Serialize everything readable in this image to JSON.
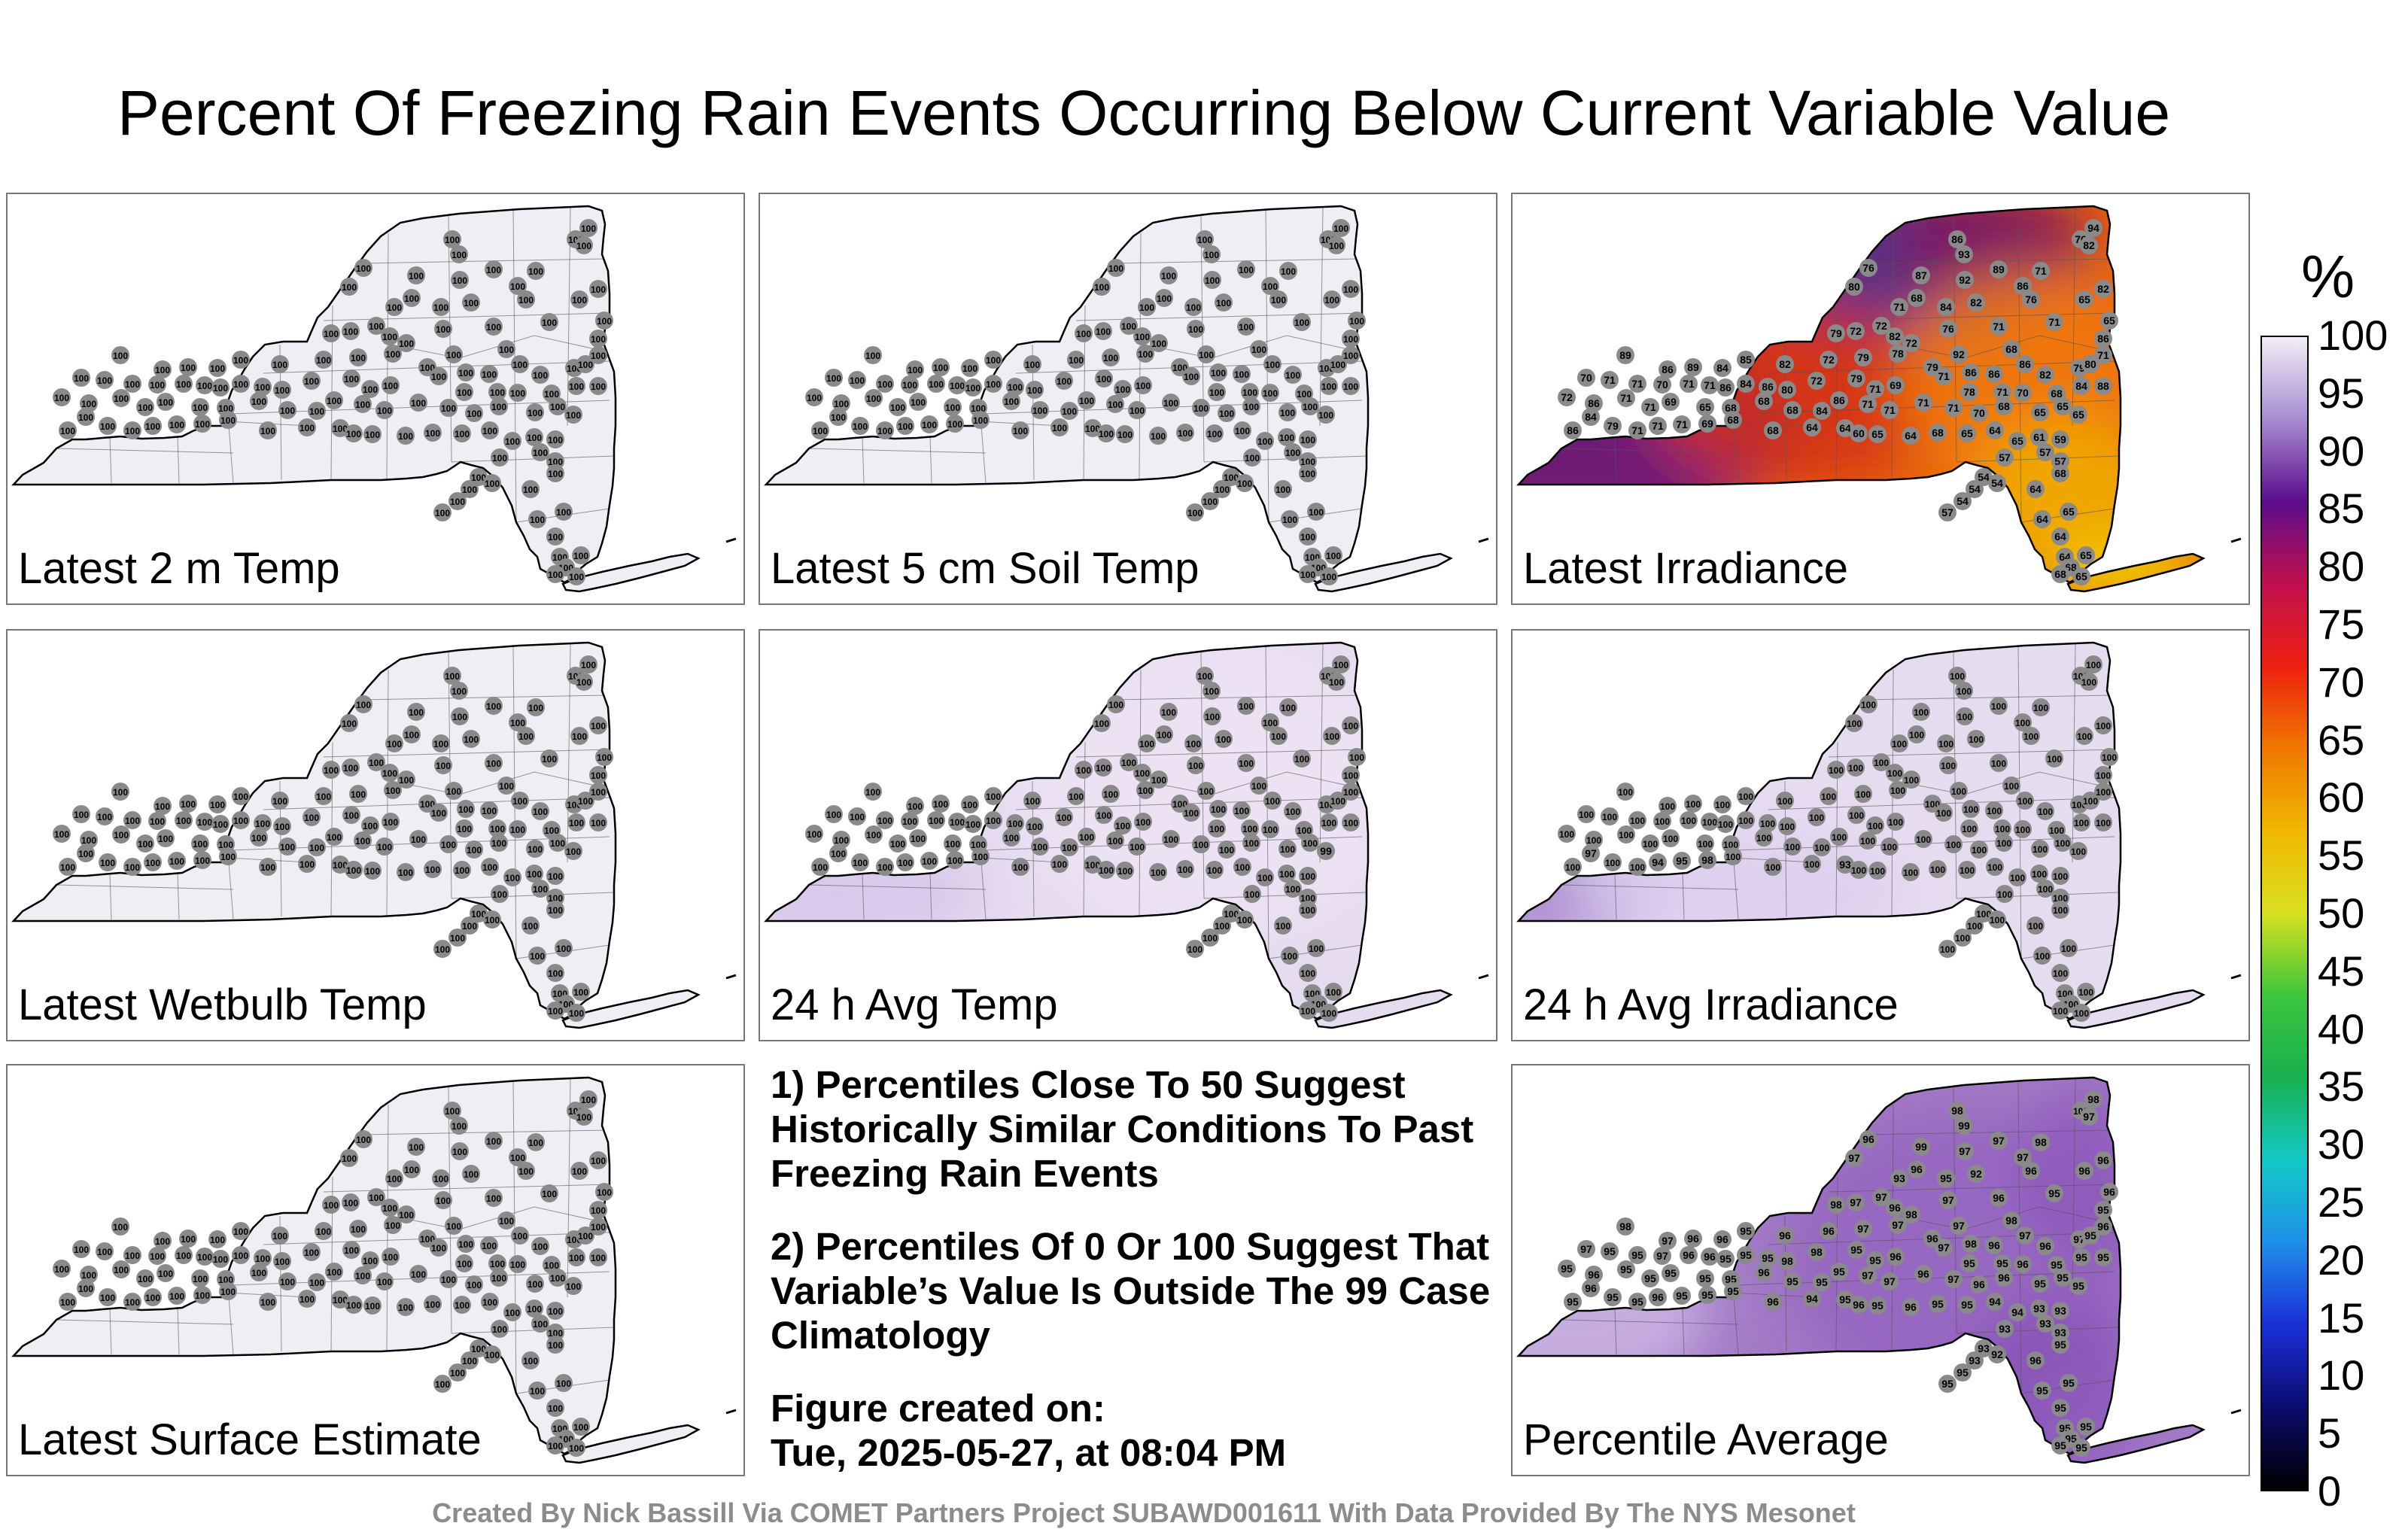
{
  "title": "Percent Of Freezing Rain Events Occurring Below Current Variable Value",
  "panels": [
    {
      "label": "Latest 2 m Temp",
      "base": "#f1edf5",
      "values": [
        100,
        100,
        100,
        100,
        100,
        100,
        100,
        100,
        100,
        100,
        100,
        100,
        100,
        100,
        100,
        100,
        100,
        100,
        100,
        100,
        100,
        100,
        100,
        100,
        100,
        100,
        100,
        100,
        100,
        100,
        100,
        100,
        100,
        100,
        100,
        100,
        100,
        100,
        100,
        100,
        100,
        100,
        100,
        100,
        100,
        100,
        100,
        100,
        100,
        100,
        100,
        100,
        100,
        100,
        100,
        100,
        100,
        100,
        100,
        100,
        100,
        100,
        100,
        100,
        100,
        100,
        100,
        100,
        100,
        100,
        100,
        100,
        100,
        100,
        100,
        100,
        100,
        100,
        100,
        100,
        100,
        100,
        100,
        100,
        100,
        100,
        100,
        100,
        100,
        100,
        100,
        100,
        100,
        100,
        100,
        100,
        100,
        100,
        100,
        100,
        100,
        100,
        100,
        100,
        100,
        100,
        100,
        100,
        100,
        100,
        100,
        100,
        100,
        100,
        100,
        100,
        100,
        100,
        100,
        100,
        100,
        100,
        100,
        100,
        100,
        100,
        100
      ]
    },
    {
      "label": "Latest 5 cm Soil Temp",
      "base": "#f1edf5",
      "values": [
        100,
        100,
        100,
        100,
        100,
        100,
        100,
        100,
        100,
        100,
        100,
        100,
        100,
        100,
        100,
        100,
        100,
        100,
        100,
        100,
        100,
        100,
        100,
        100,
        100,
        100,
        100,
        100,
        100,
        100,
        100,
        100,
        100,
        100,
        100,
        100,
        100,
        100,
        100,
        100,
        100,
        100,
        100,
        100,
        100,
        100,
        100,
        100,
        100,
        100,
        100,
        100,
        100,
        100,
        100,
        100,
        100,
        100,
        100,
        100,
        100,
        100,
        100,
        100,
        100,
        100,
        100,
        100,
        100,
        100,
        100,
        100,
        100,
        100,
        100,
        100,
        100,
        100,
        100,
        100,
        100,
        100,
        100,
        100,
        100,
        100,
        100,
        100,
        100,
        100,
        100,
        100,
        100,
        100,
        100,
        100,
        100,
        100,
        100,
        100,
        100,
        100,
        100,
        100,
        100,
        100,
        100,
        100,
        100,
        100,
        100,
        100,
        100,
        100,
        100,
        100,
        100,
        100,
        100,
        100,
        100,
        100,
        100,
        100,
        100,
        100,
        100
      ]
    },
    {
      "label": "Latest Irradiance",
      "base": "#e8650c",
      "values": [
        86,
        93,
        76,
        94,
        82,
        76,
        80,
        92,
        87,
        89,
        86,
        71,
        82,
        68,
        71,
        84,
        82,
        76,
        71,
        65,
        65,
        72,
        72,
        82,
        76,
        71,
        79,
        72,
        68,
        86,
        89,
        86,
        89,
        84,
        85,
        82,
        72,
        79,
        78,
        92,
        79,
        86,
        86,
        86,
        82,
        79,
        80,
        71,
        70,
        71,
        71,
        70,
        71,
        71,
        86,
        84,
        86,
        80,
        72,
        79,
        71,
        69,
        71,
        78,
        71,
        70,
        68,
        84,
        88,
        72,
        86,
        71,
        71,
        69,
        65,
        68,
        68,
        68,
        84,
        86,
        71,
        71,
        71,
        71,
        70,
        68,
        65,
        65,
        65,
        86,
        84,
        79,
        71,
        71,
        71,
        69,
        68,
        68,
        64,
        64,
        60,
        65,
        64,
        68,
        65,
        64,
        65,
        61,
        59,
        57,
        57,
        57,
        54,
        54,
        54,
        54,
        57,
        64,
        68,
        65,
        64,
        64,
        64,
        65,
        68,
        65,
        68
      ]
    },
    {
      "label": "Latest Wetbulb Temp",
      "base": "#f1edf5",
      "values": [
        100,
        100,
        100,
        100,
        100,
        100,
        100,
        100,
        100,
        100,
        100,
        100,
        100,
        100,
        100,
        100,
        100,
        100,
        100,
        100,
        100,
        100,
        100,
        100,
        100,
        100,
        100,
        100,
        100,
        100,
        100,
        100,
        100,
        100,
        100,
        100,
        100,
        100,
        100,
        100,
        100,
        100,
        100,
        100,
        100,
        100,
        100,
        100,
        100,
        100,
        100,
        100,
        100,
        100,
        100,
        100,
        100,
        100,
        100,
        100,
        100,
        100,
        100,
        100,
        100,
        100,
        100,
        100,
        100,
        100,
        100,
        100,
        100,
        100,
        100,
        100,
        100,
        100,
        100,
        100,
        100,
        100,
        100,
        100,
        100,
        100,
        100,
        100,
        100,
        100,
        100,
        100,
        100,
        100,
        100,
        100,
        100,
        100,
        100,
        100,
        100,
        100,
        100,
        100,
        100,
        100,
        100,
        100,
        100,
        100,
        100,
        100,
        100,
        100,
        100,
        100,
        100,
        100,
        100,
        100,
        100,
        100,
        100,
        100,
        100,
        100,
        100
      ]
    },
    {
      "label": "24 h Avg Temp",
      "base": "#e6dcf0",
      "values": [
        100,
        100,
        100,
        100,
        100,
        100,
        100,
        100,
        100,
        100,
        100,
        100,
        100,
        100,
        100,
        100,
        100,
        100,
        100,
        100,
        100,
        100,
        100,
        100,
        100,
        100,
        100,
        100,
        100,
        100,
        100,
        100,
        100,
        100,
        100,
        100,
        100,
        100,
        100,
        100,
        100,
        100,
        100,
        100,
        100,
        100,
        100,
        100,
        100,
        100,
        100,
        100,
        100,
        100,
        100,
        100,
        100,
        100,
        100,
        100,
        100,
        100,
        100,
        100,
        100,
        100,
        100,
        100,
        100,
        100,
        100,
        100,
        100,
        100,
        100,
        100,
        100,
        100,
        100,
        100,
        100,
        100,
        100,
        100,
        100,
        100,
        100,
        100,
        99,
        100,
        100,
        100,
        100,
        100,
        100,
        100,
        100,
        100,
        100,
        100,
        100,
        100,
        100,
        100,
        100,
        100,
        100,
        100,
        100,
        100,
        100,
        100,
        100,
        100,
        100,
        100,
        100,
        100,
        100,
        100,
        100,
        100,
        100,
        100,
        100,
        100,
        100
      ]
    },
    {
      "label": "24 h Avg Irradiance",
      "base": "#e6dcf0",
      "values": [
        100,
        100,
        100,
        100,
        100,
        100,
        100,
        100,
        100,
        100,
        100,
        100,
        100,
        100,
        100,
        100,
        100,
        100,
        100,
        100,
        100,
        100,
        100,
        100,
        100,
        100,
        100,
        100,
        100,
        100,
        100,
        100,
        100,
        100,
        100,
        100,
        100,
        100,
        100,
        100,
        100,
        100,
        100,
        100,
        100,
        100,
        100,
        100,
        100,
        100,
        100,
        100,
        100,
        100,
        100,
        100,
        100,
        100,
        100,
        100,
        100,
        100,
        100,
        100,
        100,
        100,
        100,
        100,
        100,
        100,
        100,
        100,
        100,
        100,
        100,
        100,
        100,
        100,
        100,
        100,
        100,
        100,
        100,
        100,
        100,
        100,
        100,
        100,
        100,
        100,
        97,
        100,
        100,
        94,
        95,
        98,
        100,
        100,
        100,
        93,
        100,
        100,
        100,
        100,
        100,
        100,
        100,
        100,
        100,
        100,
        100,
        100,
        100,
        100,
        100,
        100,
        100,
        100,
        100,
        100,
        100,
        100,
        100,
        100,
        100,
        100,
        100
      ]
    },
    {
      "label": "Latest Surface Estimate",
      "base": "#f1edf5",
      "values": [
        100,
        100,
        100,
        100,
        100,
        100,
        100,
        100,
        100,
        100,
        100,
        100,
        100,
        100,
        100,
        100,
        100,
        100,
        100,
        100,
        100,
        100,
        100,
        100,
        100,
        100,
        100,
        100,
        100,
        100,
        100,
        100,
        100,
        100,
        100,
        100,
        100,
        100,
        100,
        100,
        100,
        100,
        100,
        100,
        100,
        100,
        100,
        100,
        100,
        100,
        100,
        100,
        100,
        100,
        100,
        100,
        100,
        100,
        100,
        100,
        100,
        100,
        100,
        100,
        100,
        100,
        100,
        100,
        100,
        100,
        100,
        100,
        100,
        100,
        100,
        100,
        100,
        100,
        100,
        100,
        100,
        100,
        100,
        100,
        100,
        100,
        100,
        100,
        100,
        100,
        100,
        100,
        100,
        100,
        100,
        100,
        100,
        100,
        100,
        100,
        100,
        100,
        100,
        100,
        100,
        100,
        100,
        100,
        100,
        100,
        100,
        100,
        100,
        100,
        100,
        100,
        100,
        100,
        100,
        100,
        100,
        100,
        100,
        100,
        100,
        100,
        100
      ]
    },
    {
      "label": "Percentile Average",
      "base": "#a37bc6",
      "values": [
        98,
        99,
        100,
        98,
        97,
        96,
        97,
        97,
        99,
        97,
        97,
        98,
        96,
        96,
        93,
        95,
        92,
        96,
        95,
        96,
        96,
        97,
        97,
        96,
        97,
        96,
        98,
        98,
        98,
        95,
        98,
        97,
        96,
        96,
        95,
        96,
        96,
        97,
        97,
        97,
        96,
        98,
        96,
        97,
        96,
        97,
        95,
        96,
        97,
        95,
        95,
        97,
        96,
        96,
        95,
        95,
        95,
        98,
        98,
        95,
        95,
        96,
        97,
        95,
        95,
        96,
        95,
        95,
        95,
        95,
        96,
        95,
        95,
        95,
        95,
        95,
        96,
        95,
        95,
        95,
        97,
        97,
        96,
        97,
        96,
        96,
        95,
        95,
        95,
        95,
        96,
        95,
        95,
        96,
        95,
        95,
        95,
        96,
        94,
        95,
        96,
        95,
        96,
        95,
        95,
        94,
        94,
        93,
        93,
        93,
        93,
        93,
        93,
        92,
        93,
        95,
        95,
        96,
        95,
        95,
        95,
        95,
        95,
        95,
        95,
        95,
        95
      ]
    }
  ],
  "notes": [
    "1) Percentiles Close To 50 Suggest Historically Similar Conditions To Past Freezing Rain Events",
    "2) Percentiles Of 0 Or 100 Suggest That Variable’s Value Is Outside The 99 Case Climatology"
  ],
  "created_label": "Figure created on:",
  "created_value": "Tue, 2025-05-27, at 08:04 PM",
  "credit": "Created By Nick Bassill Via COMET Partners Project SUBAWD001611 With Data Provided By The NYS Mesonet",
  "colorbar": {
    "unit": "%",
    "range": [
      0,
      100
    ],
    "ticks": [
      100,
      95,
      90,
      85,
      80,
      75,
      70,
      65,
      60,
      55,
      50,
      45,
      40,
      35,
      30,
      25,
      20,
      15,
      10,
      5,
      0
    ],
    "tick_labels": [
      "100",
      "95",
      "90",
      "85",
      "80",
      "75",
      "70",
      "65",
      "60",
      "55",
      "50",
      "45",
      "40",
      "35",
      "30",
      "25",
      "20",
      "15",
      "10",
      "5",
      "0"
    ],
    "stops": [
      "#000000",
      "#0b0b6e",
      "#1a2fd8",
      "#1f8fe8",
      "#13c9c9",
      "#18b050",
      "#3cc63c",
      "#d8e020",
      "#f0b800",
      "#f07800",
      "#ee2010",
      "#c0104e",
      "#5c0c8c",
      "#a78cd0",
      "#f2eef6"
    ]
  },
  "chart_data": {
    "type": "heatmap",
    "title": "Percent Of Freezing Rain Events Occurring Below Current Variable Value",
    "colorbar_label": "%",
    "colorbar_range": [
      0,
      100
    ],
    "panels": [
      "Latest 2 m Temp",
      "Latest 5 cm Soil Temp",
      "Latest Irradiance",
      "Latest Wetbulb Temp",
      "24 h Avg Temp",
      "24 h Avg Irradiance",
      "Latest Surface Estimate",
      "Percentile Average"
    ]
  }
}
